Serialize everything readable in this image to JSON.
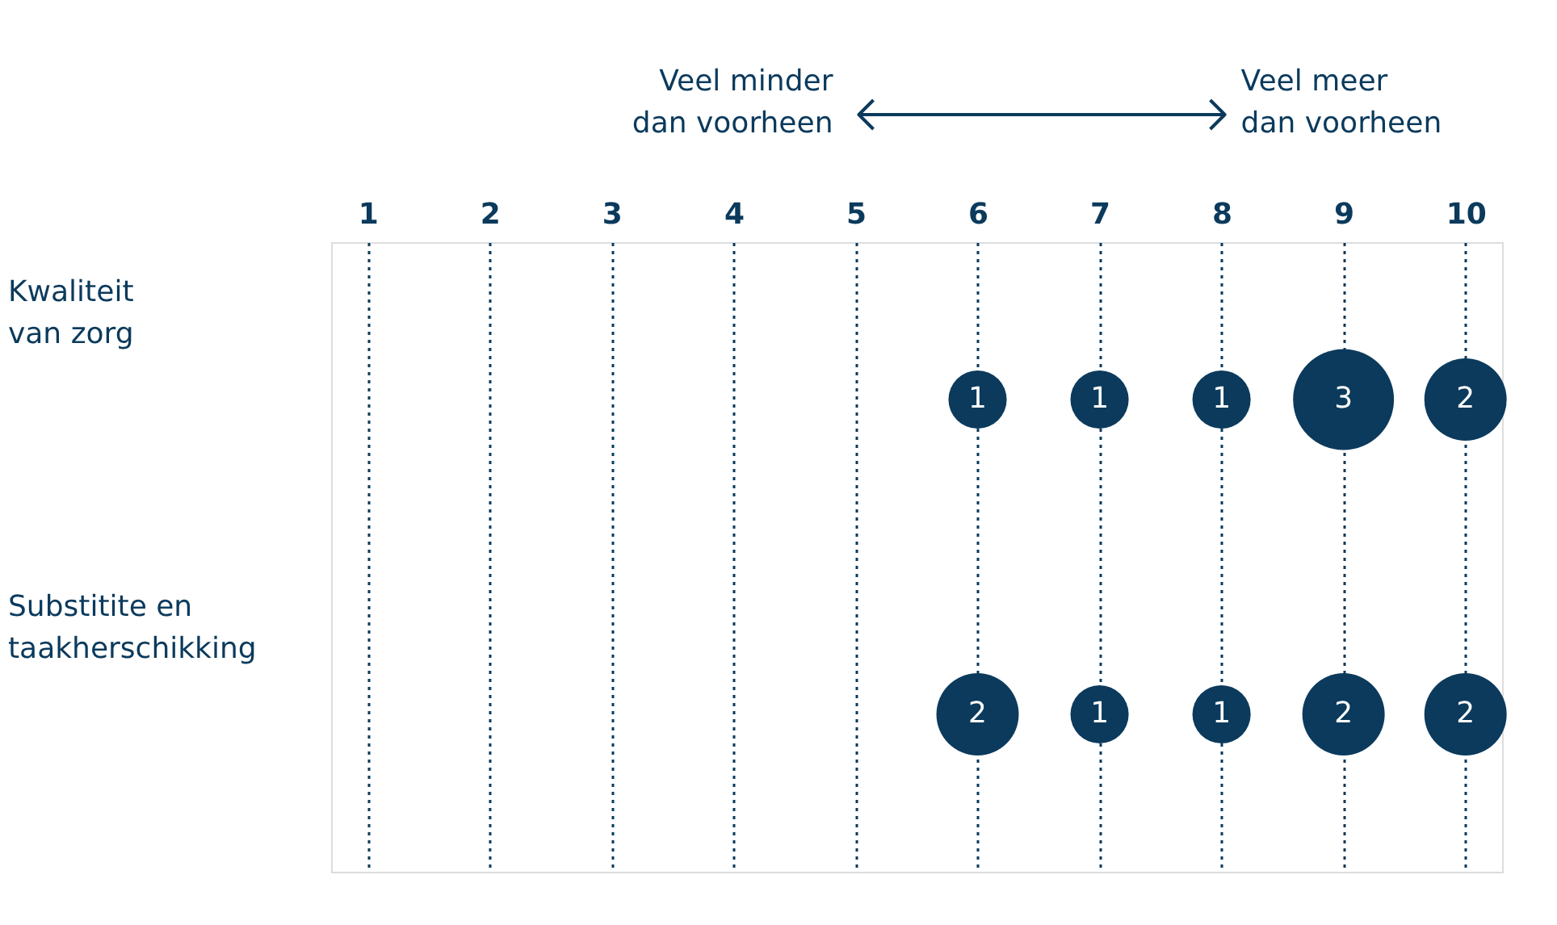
{
  "chart_data": {
    "type": "heatmap",
    "categories": [
      "1",
      "2",
      "3",
      "4",
      "5",
      "6",
      "7",
      "8",
      "9",
      "10"
    ],
    "y_categories": [
      "Kwaliteit van zorg",
      "Substitite en taakherschikking"
    ],
    "cells": [
      [
        null,
        null,
        null,
        null,
        null,
        1,
        1,
        1,
        3,
        2
      ],
      [
        null,
        null,
        null,
        null,
        null,
        2,
        1,
        1,
        2,
        2
      ]
    ],
    "color": "#0b3a5c",
    "data_labels": true,
    "grid": "x",
    "annotations": [
      "Veel minder dan voorheen",
      "Veel meer dan voorheen"
    ]
  }
}
